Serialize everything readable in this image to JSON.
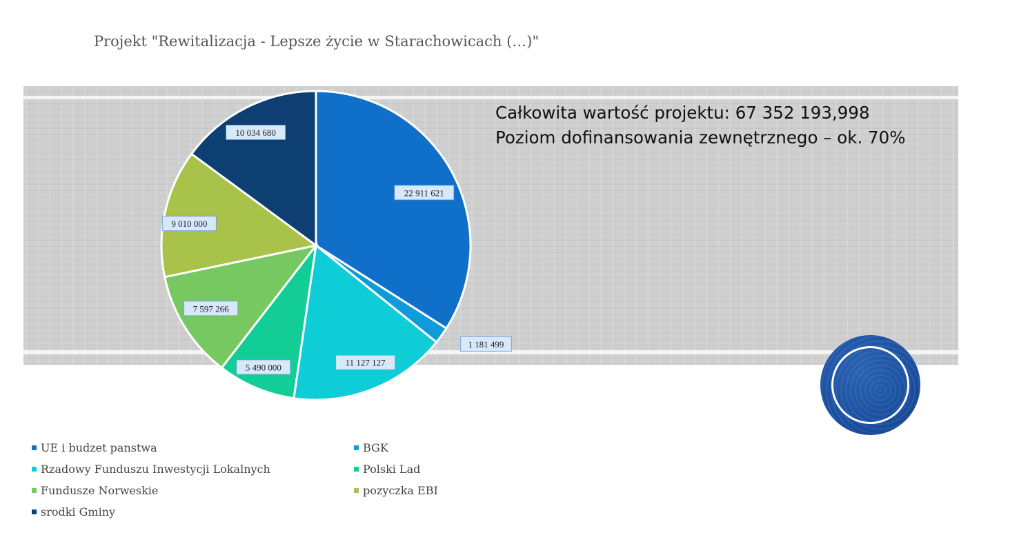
{
  "slide_title": "Projekt \"Rewitalizacja - Lepsze życie w Starachowicach (…)\"",
  "info": {
    "line1": "Całkowita wartość projektu: 67 352 193,998",
    "line2": "Poziom dofinansowania zewnętrznego – ok. 70%"
  },
  "chart_data": {
    "type": "pie",
    "slices": [
      {
        "label": "UE i budzet panstwa",
        "value": 22911621,
        "value_label": "22 911 621",
        "color": "#1070c9"
      },
      {
        "label": "BGK",
        "value": 1181499,
        "value_label": "1 181 499",
        "color": "#0f9bd9"
      },
      {
        "label": "Rzadowy Funduszu Inwestycji Lokalnych",
        "value": 11127127,
        "value_label": "11 127 127",
        "color": "#0fcdd6"
      },
      {
        "label": "Polski Lad",
        "value": 5490000,
        "value_label": "5 490 000",
        "color": "#12cd96"
      },
      {
        "label": "Fundusze Norweskie",
        "value": 7597266,
        "value_label": "7 597 266",
        "color": "#78c862"
      },
      {
        "label": "pozyczka EBI",
        "value": 9010000,
        "value_label": "9 010 000",
        "color": "#a9c24a"
      },
      {
        "label": "srodki Gminy",
        "value": 10034680,
        "value_label": "10 034 680",
        "color": "#0d3f72"
      }
    ],
    "legend_position": "bottom"
  }
}
